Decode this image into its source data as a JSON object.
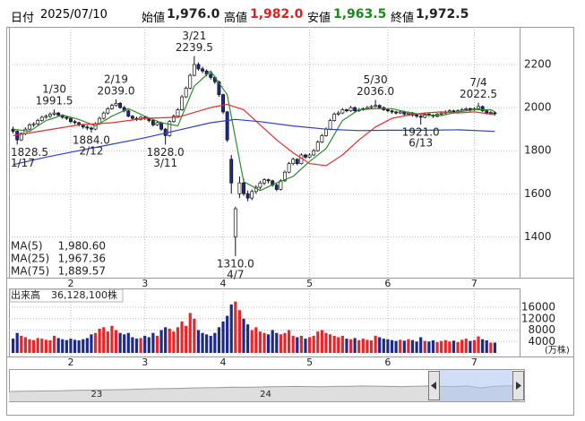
{
  "header": {
    "date_label": "日付",
    "date": "2025/07/10",
    "fields": [
      {
        "name": "始値",
        "value": 1976.0,
        "label": "1,976.0",
        "color": "#222222"
      },
      {
        "name": "高値",
        "value": 1982.0,
        "label": "1,982.0",
        "color": "#e02020"
      },
      {
        "name": "安値",
        "value": 1963.5,
        "label": "1,963.5",
        "color": "#1a8a1a"
      },
      {
        "name": "終値",
        "value": 1972.5,
        "label": "1,972.5",
        "color": "#222222"
      }
    ]
  },
  "chart_data": [
    {
      "type": "candlestick",
      "xlim": [
        -1,
        123
      ],
      "ylim": [
        1210,
        2375
      ],
      "yticks": [
        1400,
        1600,
        1800,
        2000,
        2200
      ],
      "grid": true,
      "xticks": [
        {
          "value": 14,
          "label": "2"
        },
        {
          "value": 32,
          "label": "3"
        },
        {
          "value": 51,
          "label": "4"
        },
        {
          "value": 72,
          "label": "5"
        },
        {
          "value": 91,
          "label": "6"
        },
        {
          "value": 112,
          "label": "7"
        }
      ],
      "up_color": "#ffffff",
      "down_color": "#1c2a8a",
      "outline_color": "#111111",
      "ohlc": [
        [
          1900,
          1912,
          1880,
          1890
        ],
        [
          1890,
          1895,
          1828.5,
          1850
        ],
        [
          1850,
          1885,
          1845,
          1880
        ],
        [
          1880,
          1908,
          1872,
          1900
        ],
        [
          1900,
          1928,
          1895,
          1920
        ],
        [
          1920,
          1932,
          1910,
          1925
        ],
        [
          1925,
          1948,
          1918,
          1940
        ],
        [
          1940,
          1962,
          1935,
          1955
        ],
        [
          1955,
          1968,
          1948,
          1960
        ],
        [
          1960,
          1978,
          1952,
          1970
        ],
        [
          1970,
          1991.5,
          1962,
          1975
        ],
        [
          1975,
          1980,
          1958,
          1965
        ],
        [
          1965,
          1970,
          1948,
          1955
        ],
        [
          1955,
          1962,
          1942,
          1950
        ],
        [
          1950,
          1955,
          1928,
          1935
        ],
        [
          1935,
          1942,
          1922,
          1930
        ],
        [
          1930,
          1935,
          1912,
          1920
        ],
        [
          1920,
          1925,
          1902,
          1910
        ],
        [
          1910,
          1918,
          1895,
          1905
        ],
        [
          1905,
          1912,
          1884,
          1900
        ],
        [
          1900,
          1932,
          1895,
          1925
        ],
        [
          1925,
          1958,
          1920,
          1950
        ],
        [
          1950,
          1982,
          1945,
          1975
        ],
        [
          1975,
          2002,
          1968,
          1995
        ],
        [
          1995,
          2018,
          1990,
          2010
        ],
        [
          2010,
          2039,
          2005,
          2020
        ],
        [
          2020,
          2025,
          1995,
          2000
        ],
        [
          2000,
          2008,
          1978,
          1985
        ],
        [
          1985,
          1990,
          1955,
          1960
        ],
        [
          1960,
          1965,
          1942,
          1950
        ],
        [
          1950,
          1958,
          1938,
          1945
        ],
        [
          1945,
          1962,
          1940,
          1955
        ],
        [
          1955,
          1962,
          1943,
          1950
        ],
        [
          1950,
          1955,
          1932,
          1940
        ],
        [
          1940,
          1945,
          1912,
          1920
        ],
        [
          1920,
          1938,
          1915,
          1930
        ],
        [
          1930,
          1935,
          1892,
          1900
        ],
        [
          1900,
          1905,
          1828,
          1870
        ],
        [
          1870,
          1942,
          1865,
          1935
        ],
        [
          1935,
          1968,
          1930,
          1960
        ],
        [
          1960,
          1998,
          1955,
          1990
        ],
        [
          1990,
          2058,
          1985,
          2050
        ],
        [
          2050,
          2098,
          2045,
          2090
        ],
        [
          2090,
          2158,
          2085,
          2150
        ],
        [
          2150,
          2239.5,
          2145,
          2200
        ],
        [
          2200,
          2210,
          2172,
          2180
        ],
        [
          2180,
          2190,
          2160,
          2170
        ],
        [
          2170,
          2178,
          2145,
          2155
        ],
        [
          2155,
          2165,
          2130,
          2140
        ],
        [
          2140,
          2148,
          2110,
          2120
        ],
        [
          2120,
          2125,
          2050,
          2060
        ],
        [
          2060,
          2065,
          1970,
          1980
        ],
        [
          1980,
          1985,
          1840,
          1850
        ],
        [
          1760,
          1780,
          1600,
          1650
        ],
        [
          1400,
          1540,
          1310,
          1530
        ],
        [
          1600,
          1680,
          1580,
          1650
        ],
        [
          1650,
          1670,
          1590,
          1600
        ],
        [
          1600,
          1615,
          1565,
          1580
        ],
        [
          1580,
          1620,
          1570,
          1610
        ],
        [
          1610,
          1640,
          1600,
          1630
        ],
        [
          1630,
          1660,
          1620,
          1650
        ],
        [
          1650,
          1672,
          1640,
          1665
        ],
        [
          1665,
          1670,
          1648,
          1660
        ],
        [
          1660,
          1665,
          1632,
          1640
        ],
        [
          1640,
          1648,
          1612,
          1620
        ],
        [
          1620,
          1668,
          1615,
          1660
        ],
        [
          1660,
          1708,
          1655,
          1700
        ],
        [
          1700,
          1748,
          1695,
          1740
        ],
        [
          1740,
          1768,
          1732,
          1760
        ],
        [
          1760,
          1765,
          1732,
          1740
        ],
        [
          1740,
          1788,
          1735,
          1780
        ],
        [
          1780,
          1785,
          1762,
          1770
        ],
        [
          1770,
          1788,
          1765,
          1780
        ],
        [
          1780,
          1808,
          1775,
          1800
        ],
        [
          1800,
          1848,
          1795,
          1840
        ],
        [
          1840,
          1878,
          1835,
          1870
        ],
        [
          1870,
          1908,
          1865,
          1900
        ],
        [
          1900,
          1948,
          1895,
          1940
        ],
        [
          1940,
          1978,
          1935,
          1970
        ],
        [
          1970,
          1985,
          1962,
          1975
        ],
        [
          1975,
          1998,
          1970,
          1990
        ],
        [
          1990,
          1995,
          1978,
          1985
        ],
        [
          1985,
          2008,
          1980,
          2000
        ],
        [
          2000,
          2005,
          1978,
          1985
        ],
        [
          1985,
          1998,
          1980,
          1990
        ],
        [
          1990,
          2002,
          1985,
          1995
        ],
        [
          1995,
          2008,
          1990,
          2000
        ],
        [
          2000,
          2012,
          1995,
          2005
        ],
        [
          2005,
          2036,
          2000,
          2010
        ],
        [
          2010,
          2015,
          1995,
          2000
        ],
        [
          2000,
          2005,
          1985,
          1990
        ],
        [
          1990,
          1995,
          1978,
          1985
        ],
        [
          1985,
          1990,
          1972,
          1980
        ],
        [
          1980,
          1985,
          1968,
          1975
        ],
        [
          1975,
          1988,
          1970,
          1980
        ],
        [
          1980,
          1985,
          1962,
          1970
        ],
        [
          1970,
          1982,
          1965,
          1975
        ],
        [
          1975,
          1980,
          1958,
          1965
        ],
        [
          1965,
          1970,
          1952,
          1960
        ],
        [
          1960,
          1965,
          1921,
          1955
        ],
        [
          1955,
          1975,
          1950,
          1970
        ],
        [
          1970,
          1975,
          1958,
          1965
        ],
        [
          1965,
          1970,
          1952,
          1960
        ],
        [
          1960,
          1975,
          1955,
          1970
        ],
        [
          1970,
          1982,
          1965,
          1975
        ],
        [
          1975,
          1988,
          1970,
          1980
        ],
        [
          1980,
          1992,
          1975,
          1985
        ],
        [
          1985,
          1990,
          1972,
          1980
        ],
        [
          1980,
          1992,
          1975,
          1985
        ],
        [
          1985,
          1998,
          1980,
          1990
        ],
        [
          1990,
          2002,
          1985,
          1995
        ],
        [
          1995,
          2000,
          1982,
          1990
        ],
        [
          1990,
          2002,
          1985,
          1995
        ],
        [
          1995,
          2022.5,
          1990,
          2005
        ],
        [
          2005,
          2010,
          1980,
          1985
        ],
        [
          1985,
          1990,
          1968,
          1975
        ],
        [
          1975,
          1985,
          1965,
          1978
        ],
        [
          1976,
          1982,
          1963.5,
          1972.5
        ]
      ],
      "series": [
        {
          "name": "MA(5)",
          "color": "#2e8b2e",
          "latest": 1980.6,
          "latest_label": "1,980.60",
          "x": [
            0,
            4,
            8,
            12,
            16,
            20,
            24,
            28,
            32,
            36,
            40,
            44,
            48,
            52,
            56,
            60,
            64,
            68,
            72,
            76,
            80,
            84,
            88,
            92,
            96,
            100,
            104,
            108,
            112,
            116,
            117
          ],
          "values": [
            1900,
            1890,
            1940,
            1965,
            1945,
            1915,
            1960,
            1995,
            1960,
            1930,
            1915,
            2100,
            2170,
            2060,
            1656,
            1615,
            1650,
            1680,
            1750,
            1810,
            1940,
            1990,
            1995,
            1995,
            1978,
            1965,
            1963,
            1980,
            1990,
            1990,
            1980.6
          ]
        },
        {
          "name": "MA(25)",
          "color": "#e03030",
          "latest": 1967.36,
          "latest_label": "1,967.36",
          "x": [
            0,
            8,
            16,
            24,
            32,
            40,
            48,
            52,
            56,
            60,
            64,
            68,
            72,
            76,
            80,
            84,
            88,
            92,
            96,
            100,
            104,
            108,
            112,
            117
          ],
          "values": [
            1870,
            1895,
            1920,
            1930,
            1950,
            1955,
            2000,
            2015,
            1990,
            1920,
            1850,
            1790,
            1740,
            1730,
            1780,
            1850,
            1910,
            1950,
            1965,
            1975,
            1980,
            1975,
            1980,
            1967.36
          ]
        },
        {
          "name": "MA(75)",
          "color": "#2a3fd0",
          "latest": 1889.57,
          "latest_label": "1,889.57",
          "x": [
            0,
            8,
            16,
            24,
            32,
            40,
            48,
            54,
            60,
            68,
            76,
            84,
            92,
            100,
            108,
            117
          ],
          "values": [
            1735,
            1770,
            1800,
            1830,
            1860,
            1895,
            1930,
            1945,
            1935,
            1915,
            1900,
            1893,
            1895,
            1895,
            1897,
            1889.57
          ]
        }
      ],
      "annotations": [
        {
          "date": "1/17",
          "x": 1,
          "value": 1828.5,
          "side": "low"
        },
        {
          "date": "1/30",
          "x": 10,
          "value": 1991.5,
          "side": "high"
        },
        {
          "date": "2/12",
          "x": 19,
          "value": 1884,
          "value_label": "1884.0",
          "side": "low"
        },
        {
          "date": "2/19",
          "x": 25,
          "value": 2039,
          "value_label": "2039.0",
          "side": "high"
        },
        {
          "date": "3/11",
          "x": 37,
          "value": 1828,
          "value_label": "1828.0",
          "side": "low"
        },
        {
          "date": "3/21",
          "x": 44,
          "value": 2239.5,
          "side": "high"
        },
        {
          "date": "4/7",
          "x": 54,
          "value": 1310,
          "value_label": "1310.0",
          "side": "low"
        },
        {
          "date": "5/30",
          "x": 88,
          "value": 2036,
          "value_label": "2036.0",
          "side": "high"
        },
        {
          "date": "6/13",
          "x": 99,
          "value": 1921,
          "value_label": "1921.0",
          "side": "low"
        },
        {
          "date": "7/4",
          "x": 113,
          "value": 2022.5,
          "side": "high"
        }
      ]
    },
    {
      "type": "bar",
      "title": "出来高",
      "total": 36128100,
      "total_label": "36,128,100株",
      "unit": "(万株)",
      "xlim": [
        -1,
        123
      ],
      "ylim": [
        0,
        22600
      ],
      "yticks": [
        4000,
        8000,
        12000,
        16000
      ],
      "grid": true,
      "up_color": "#e8262a",
      "down_color": "#1c2a8a",
      "values": [
        5000,
        7000,
        6000,
        5500,
        4800,
        4500,
        5200,
        5000,
        4600,
        4400,
        6000,
        5200,
        4800,
        4500,
        5000,
        4600,
        4400,
        4800,
        5200,
        6500,
        7000,
        8500,
        9000,
        7500,
        9500,
        8000,
        7000,
        6500,
        7000,
        5500,
        5000,
        5200,
        6000,
        5500,
        7000,
        6000,
        8000,
        9000,
        8500,
        7500,
        9000,
        11000,
        9500,
        14000,
        12000,
        8000,
        7000,
        6500,
        6000,
        7000,
        9000,
        11000,
        13000,
        17000,
        18000,
        15000,
        12000,
        10000,
        8000,
        9000,
        7500,
        7000,
        6500,
        8000,
        7000,
        6500,
        7000,
        8000,
        6000,
        5500,
        6000,
        5000,
        5500,
        6000,
        7500,
        8000,
        7000,
        6500,
        6000,
        5500,
        6000,
        5000,
        4800,
        5200,
        4500,
        5000,
        4600,
        4400,
        6000,
        5500,
        5000,
        4800,
        4500,
        4200,
        4600,
        4300,
        4800,
        4500,
        4000,
        5500,
        4200,
        4000,
        4400,
        3800,
        4200,
        4500,
        4000,
        4300,
        3800,
        4600,
        5000,
        4200,
        4500,
        5800,
        4800,
        4400,
        3600,
        3612.81
      ]
    },
    {
      "type": "area",
      "color": "#9a9a9a",
      "xlim": [
        0,
        39
      ],
      "ylim": [
        0,
        4000
      ],
      "xticks": [
        {
          "value": 6.7,
          "label": "23"
        },
        {
          "value": 19.6,
          "label": "24"
        }
      ],
      "values": [
        1250,
        1280,
        1300,
        1320,
        1350,
        1400,
        1420,
        1450,
        1480,
        1500,
        1550,
        1600,
        1620,
        1650,
        1700,
        1720,
        1750,
        1800,
        1780,
        1820,
        1850,
        1880,
        1900,
        1870,
        1850,
        1900,
        1920,
        1950,
        1930,
        1900,
        1880,
        1920,
        1950,
        1900,
        1870,
        1960,
        1700,
        1900,
        1980,
        1972.5
      ]
    }
  ]
}
